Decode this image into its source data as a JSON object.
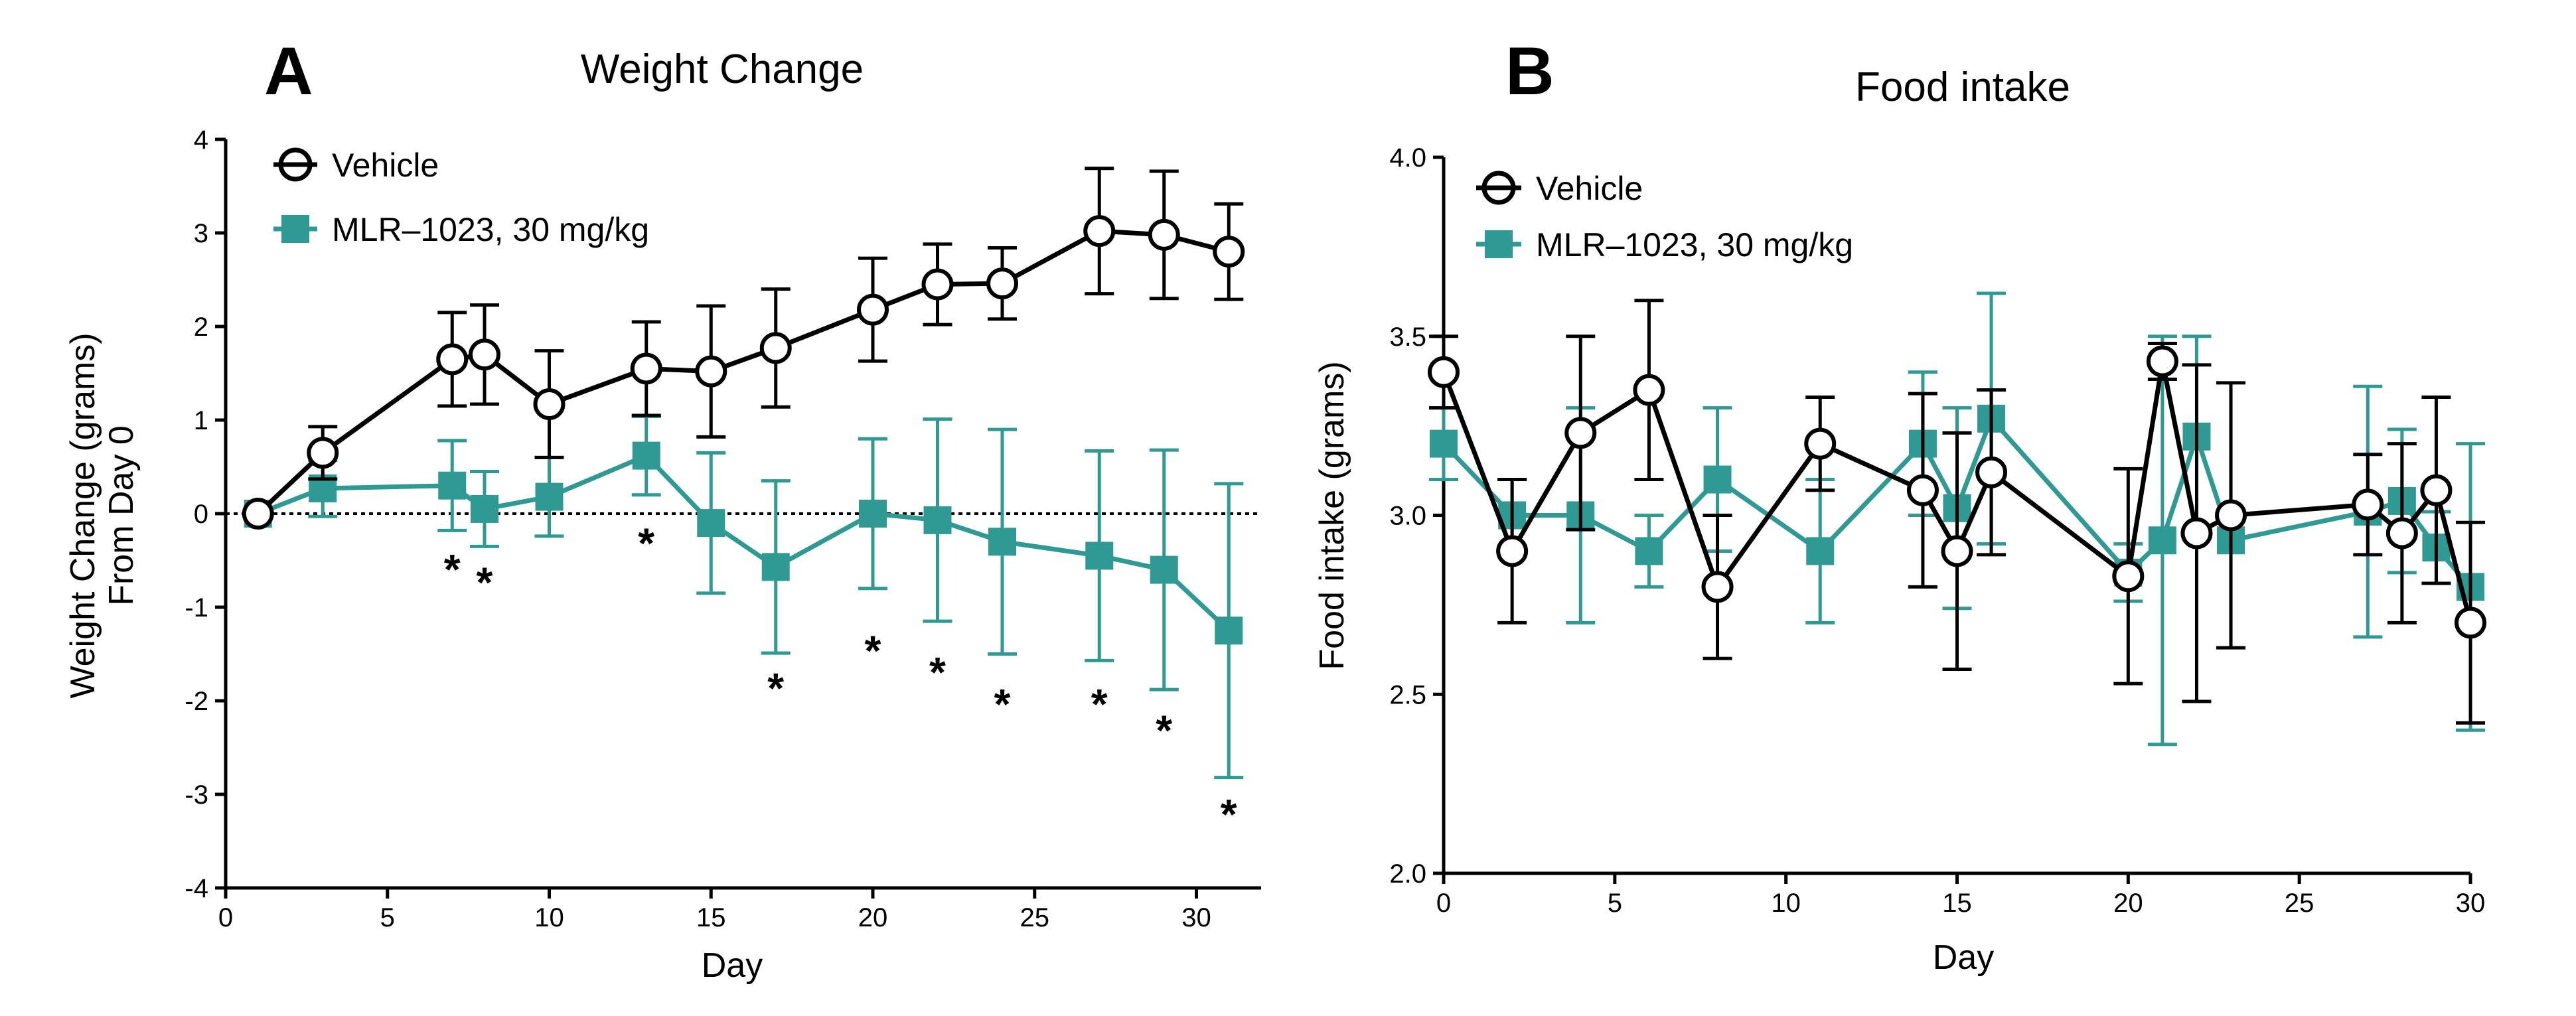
{
  "figure": {
    "colors": {
      "vehicle": "#000000",
      "drug": "#2f9a93",
      "reference_line": "#000000"
    },
    "marker_icons": {
      "vehicle": "open-circle-icon",
      "drug": "filled-square-icon"
    }
  },
  "chart_data": [
    {
      "panel": "A",
      "type": "line",
      "title": "Weight Change",
      "xlabel": "Day",
      "ylabel_lines": [
        "Weight Change (grams)",
        "From Day 0"
      ],
      "xlim": [
        0,
        32
      ],
      "ylim": [
        -4,
        4
      ],
      "xticks": [
        0,
        5,
        10,
        15,
        20,
        25,
        30
      ],
      "yticks": [
        -4,
        -3,
        -2,
        -1,
        0,
        1,
        2,
        3,
        4
      ],
      "ytick_labels": [
        "-4",
        "-3",
        "-2",
        "-1",
        "0",
        "1",
        "2",
        "3",
        "4"
      ],
      "xtick_labels": [
        "0",
        "5",
        "10",
        "15",
        "20",
        "25",
        "30"
      ],
      "reference_line": {
        "y": 0,
        "style": "dotted"
      },
      "legend": {
        "position": "top-left"
      },
      "series": [
        {
          "name": "Vehicle",
          "marker": "open-circle",
          "color": "#000000",
          "x": [
            1,
            3,
            7,
            8,
            10,
            13,
            15,
            17,
            20,
            22,
            24,
            27,
            29,
            31
          ],
          "y": [
            0,
            0.65,
            1.65,
            1.7,
            1.17,
            1.55,
            1.52,
            1.77,
            2.18,
            2.45,
            2.46,
            3.02,
            2.98,
            2.8
          ],
          "err": [
            0,
            0.28,
            0.5,
            0.53,
            0.57,
            0.5,
            0.7,
            0.63,
            0.55,
            0.43,
            0.38,
            0.67,
            0.68,
            0.51
          ]
        },
        {
          "name": "MLR–1023, 30 mg/kg",
          "marker": "filled-square",
          "color": "#2f9a93",
          "x": [
            1,
            3,
            7,
            8,
            10,
            13,
            15,
            17,
            20,
            22,
            24,
            27,
            29,
            31
          ],
          "y": [
            0,
            0.27,
            0.3,
            0.05,
            0.18,
            0.62,
            -0.1,
            -0.57,
            0,
            -0.07,
            -0.3,
            -0.45,
            -0.6,
            -1.25
          ],
          "err": [
            0,
            0.3,
            0.48,
            0.4,
            0.42,
            0.42,
            0.75,
            0.92,
            0.8,
            1.08,
            1.2,
            1.12,
            1.28,
            1.57
          ]
        }
      ],
      "significance": [
        {
          "x": 7,
          "y": -0.58,
          "label": "*"
        },
        {
          "x": 8,
          "y": -0.72,
          "label": "*"
        },
        {
          "x": 13,
          "y": -0.3,
          "label": "*"
        },
        {
          "x": 17,
          "y": -1.85,
          "label": "*"
        },
        {
          "x": 20,
          "y": -1.45,
          "label": "*"
        },
        {
          "x": 22,
          "y": -1.68,
          "label": "*"
        },
        {
          "x": 24,
          "y": -2.02,
          "label": "*"
        },
        {
          "x": 27,
          "y": -2.02,
          "label": "*"
        },
        {
          "x": 29,
          "y": -2.3,
          "label": "*"
        },
        {
          "x": 31,
          "y": -3.2,
          "label": "*"
        }
      ]
    },
    {
      "panel": "B",
      "type": "line",
      "title": "Food intake",
      "xlabel": "Day",
      "ylabel_lines": [
        "Food intake (grams)"
      ],
      "xlim": [
        0,
        30
      ],
      "ylim": [
        2.0,
        4.0
      ],
      "xticks": [
        0,
        5,
        10,
        15,
        20,
        25,
        30
      ],
      "yticks": [
        2.0,
        2.5,
        3.0,
        3.5,
        4.0
      ],
      "ytick_labels": [
        "2.0",
        "2.5",
        "3.0",
        "3.5",
        "4.0"
      ],
      "xtick_labels": [
        "0",
        "5",
        "10",
        "15",
        "20",
        "25",
        "30"
      ],
      "legend": {
        "position": "top-left"
      },
      "series": [
        {
          "name": "Vehicle",
          "marker": "open-circle",
          "color": "#000000",
          "x": [
            0,
            2,
            4,
            6,
            8,
            11,
            14,
            15,
            16,
            20,
            21,
            22,
            23,
            27,
            28,
            29,
            30
          ],
          "y": [
            3.4,
            2.9,
            3.23,
            3.35,
            2.8,
            3.2,
            3.07,
            2.9,
            3.12,
            2.83,
            3.43,
            2.95,
            3.0,
            3.03,
            2.95,
            3.07,
            2.7
          ],
          "err": [
            0.1,
            0.2,
            0.27,
            0.25,
            0.2,
            0.13,
            0.27,
            0.33,
            0.23,
            0.3,
            0.05,
            0.47,
            0.37,
            0.14,
            0.25,
            0.26,
            0.28
          ]
        },
        {
          "name": "MLR–1023, 30 mg/kg",
          "marker": "filled-square",
          "color": "#2f9a93",
          "x": [
            0,
            2,
            4,
            6,
            8,
            11,
            14,
            15,
            16,
            20,
            21,
            22,
            23,
            27,
            28,
            29,
            30
          ],
          "y": [
            3.2,
            3.0,
            3.0,
            2.9,
            3.1,
            2.9,
            3.2,
            3.02,
            3.27,
            2.84,
            2.93,
            3.22,
            2.93,
            3.01,
            3.04,
            2.91,
            2.8
          ],
          "err": [
            0.1,
            0.1,
            0.3,
            0.1,
            0.2,
            0.2,
            0.2,
            0.28,
            0.35,
            0.08,
            0.57,
            0.28,
            0.0,
            0.35,
            0.2,
            0.1,
            0.4
          ]
        }
      ]
    }
  ]
}
